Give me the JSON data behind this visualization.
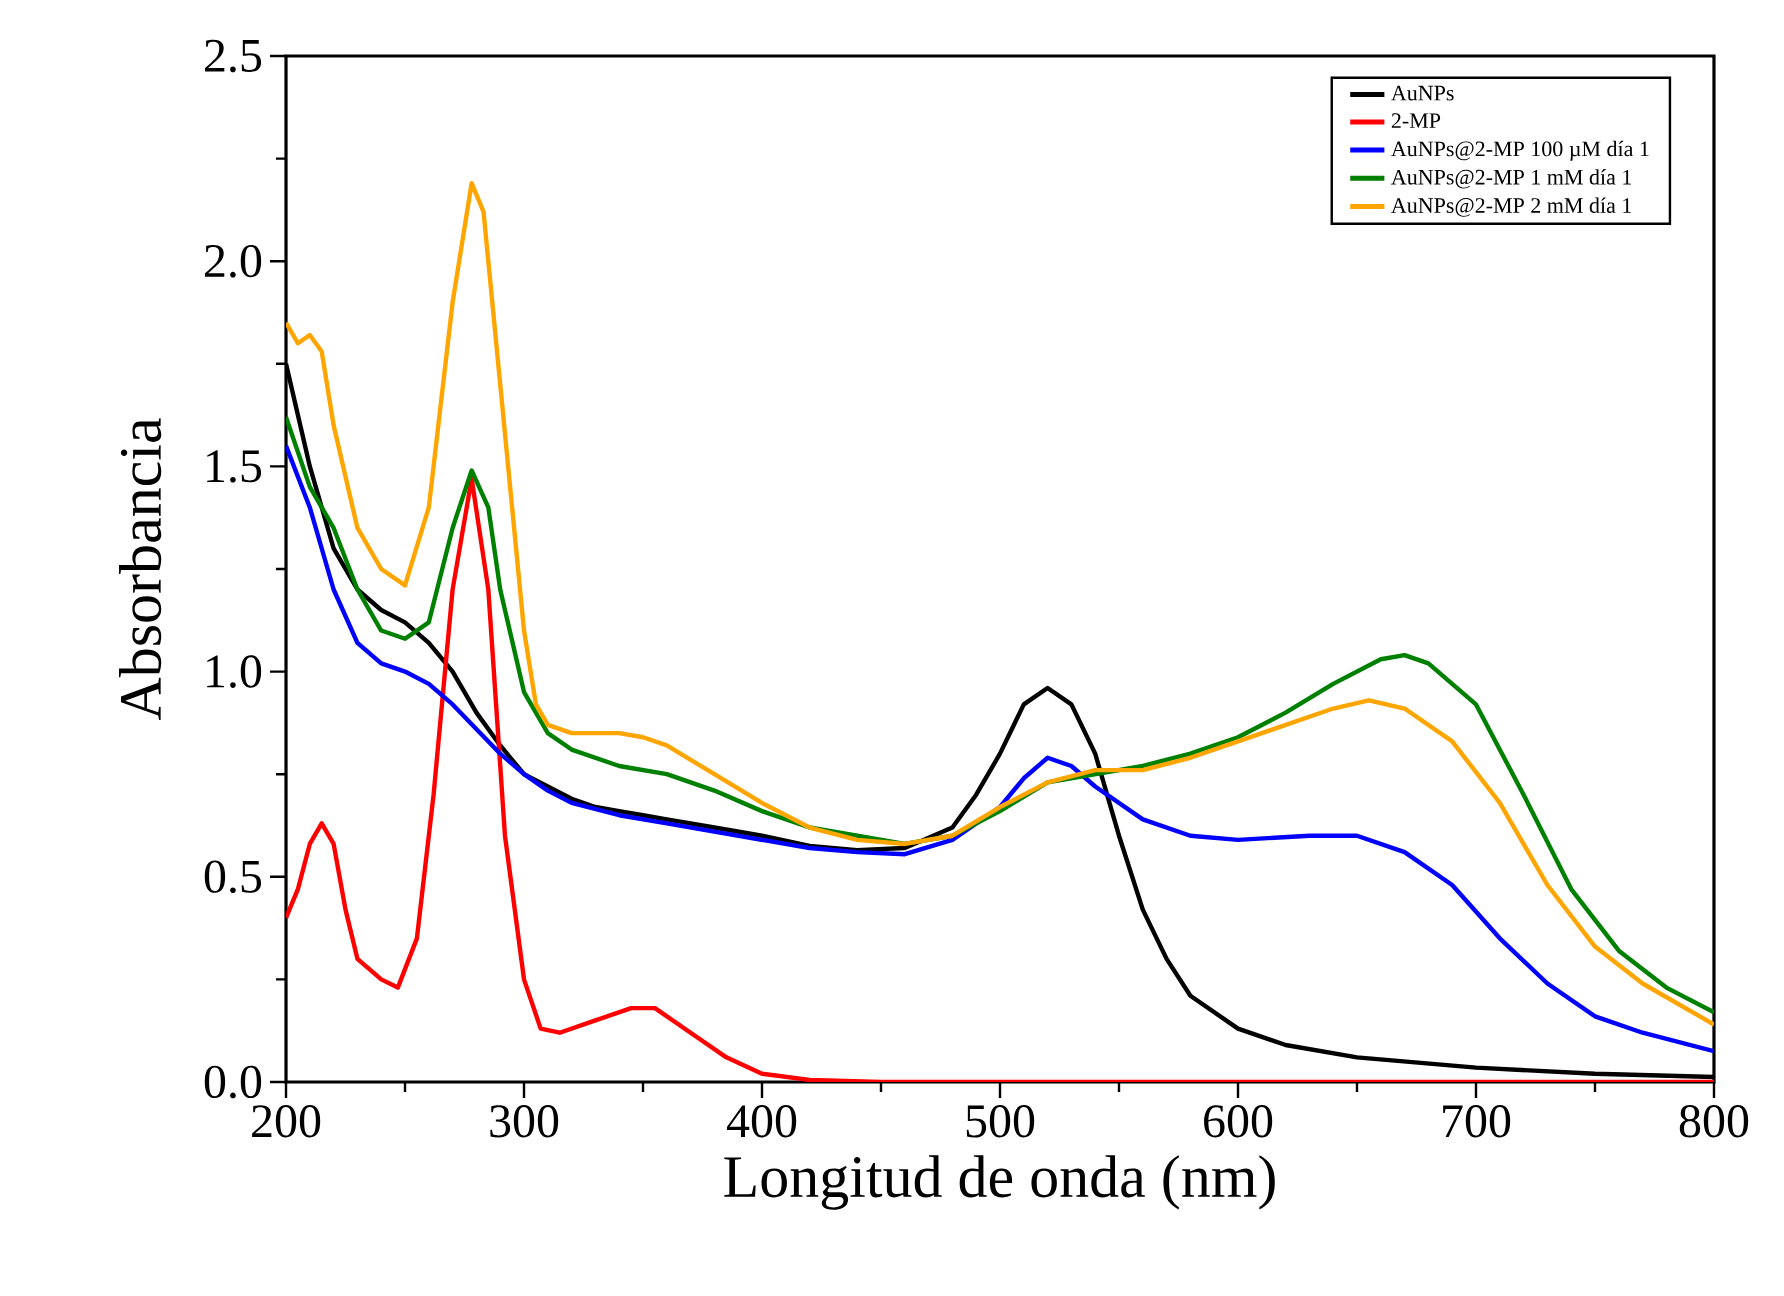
{
  "chart_data": {
    "type": "line",
    "xlabel": "Longitud de onda (nm)",
    "ylabel": "Absorbancia",
    "xlim": [
      200,
      800
    ],
    "ylim": [
      0,
      2.5
    ],
    "xticks": [
      200,
      300,
      400,
      500,
      600,
      700,
      800
    ],
    "yticks": [
      {
        "value": 0,
        "label": "0.0"
      },
      {
        "value": 0.5,
        "label": "0.5"
      },
      {
        "value": 1,
        "label": "1.0"
      },
      {
        "value": 1.5,
        "label": "1.5"
      },
      {
        "value": 2,
        "label": "2.0"
      },
      {
        "value": 2.5,
        "label": "2.5"
      }
    ],
    "legend": "top right",
    "grid": false,
    "marker": "none",
    "line_style": "solid",
    "series": [
      {
        "name": "AuNPs",
        "color": "#000000",
        "x": [
          200,
          210,
          220,
          230,
          240,
          250,
          260,
          270,
          280,
          290,
          300,
          310,
          320,
          330,
          340,
          350,
          360,
          380,
          400,
          420,
          440,
          460,
          480,
          490,
          500,
          510,
          520,
          530,
          540,
          550,
          560,
          570,
          580,
          600,
          620,
          650,
          700,
          750,
          800
        ],
        "values": [
          1.75,
          1.5,
          1.3,
          1.2,
          1.15,
          1.12,
          1.07,
          1.0,
          0.9,
          0.82,
          0.75,
          0.72,
          0.69,
          0.67,
          0.66,
          0.65,
          0.64,
          0.62,
          0.6,
          0.575,
          0.565,
          0.57,
          0.62,
          0.7,
          0.8,
          0.92,
          0.96,
          0.92,
          0.8,
          0.6,
          0.42,
          0.3,
          0.21,
          0.13,
          0.09,
          0.06,
          0.035,
          0.02,
          0.012
        ]
      },
      {
        "name": "2-MP",
        "color": "#ff0000",
        "x": [
          200,
          205,
          210,
          215,
          220,
          225,
          230,
          240,
          247,
          255,
          262,
          270,
          278,
          285,
          292,
          300,
          307,
          315,
          330,
          345,
          355,
          370,
          385,
          400,
          420,
          450,
          500,
          800
        ],
        "values": [
          0.4,
          0.47,
          0.58,
          0.63,
          0.58,
          0.42,
          0.3,
          0.25,
          0.23,
          0.35,
          0.7,
          1.2,
          1.47,
          1.2,
          0.6,
          0.25,
          0.13,
          0.12,
          0.15,
          0.18,
          0.18,
          0.12,
          0.06,
          0.02,
          0.005,
          0,
          0,
          0
        ]
      },
      {
        "name": "AuNPs@2-MP 100 µM día 1",
        "color": "#0000ff",
        "x": [
          200,
          210,
          220,
          230,
          240,
          250,
          260,
          270,
          280,
          290,
          300,
          310,
          320,
          340,
          360,
          380,
          400,
          420,
          440,
          460,
          480,
          500,
          510,
          520,
          530,
          540,
          560,
          580,
          600,
          630,
          650,
          670,
          690,
          710,
          730,
          750,
          770,
          800
        ],
        "values": [
          1.55,
          1.4,
          1.2,
          1.07,
          1.02,
          1.0,
          0.97,
          0.92,
          0.86,
          0.8,
          0.75,
          0.71,
          0.68,
          0.65,
          0.63,
          0.61,
          0.59,
          0.57,
          0.56,
          0.555,
          0.59,
          0.67,
          0.74,
          0.79,
          0.77,
          0.72,
          0.64,
          0.6,
          0.59,
          0.6,
          0.6,
          0.56,
          0.48,
          0.35,
          0.24,
          0.16,
          0.12,
          0.075
        ]
      },
      {
        "name": "AuNPs@2-MP 1 mM día 1",
        "color": "#008000",
        "x": [
          200,
          210,
          220,
          230,
          240,
          250,
          260,
          270,
          278,
          285,
          290,
          300,
          310,
          320,
          340,
          360,
          380,
          400,
          420,
          440,
          460,
          480,
          500,
          520,
          540,
          560,
          580,
          600,
          620,
          640,
          660,
          670,
          680,
          700,
          720,
          740,
          760,
          780,
          800
        ],
        "values": [
          1.62,
          1.45,
          1.35,
          1.2,
          1.1,
          1.08,
          1.12,
          1.35,
          1.49,
          1.4,
          1.2,
          0.95,
          0.85,
          0.81,
          0.77,
          0.75,
          0.71,
          0.66,
          0.62,
          0.6,
          0.58,
          0.6,
          0.66,
          0.73,
          0.75,
          0.77,
          0.8,
          0.84,
          0.9,
          0.97,
          1.03,
          1.04,
          1.02,
          0.92,
          0.7,
          0.47,
          0.32,
          0.23,
          0.17
        ]
      },
      {
        "name": "AuNPs@2-MP 2 mM día 1",
        "color": "#ffa500",
        "x": [
          200,
          205,
          210,
          215,
          220,
          230,
          240,
          250,
          260,
          270,
          278,
          283,
          290,
          300,
          305,
          310,
          320,
          340,
          350,
          360,
          380,
          400,
          420,
          440,
          460,
          480,
          500,
          520,
          540,
          560,
          580,
          600,
          620,
          640,
          655,
          670,
          690,
          710,
          730,
          750,
          770,
          800
        ],
        "values": [
          1.85,
          1.8,
          1.82,
          1.78,
          1.6,
          1.35,
          1.25,
          1.21,
          1.4,
          1.9,
          2.19,
          2.12,
          1.7,
          1.1,
          0.92,
          0.87,
          0.85,
          0.85,
          0.84,
          0.82,
          0.75,
          0.68,
          0.62,
          0.59,
          0.58,
          0.6,
          0.67,
          0.73,
          0.76,
          0.76,
          0.79,
          0.83,
          0.87,
          0.91,
          0.93,
          0.91,
          0.83,
          0.68,
          0.48,
          0.33,
          0.24,
          0.14
        ]
      }
    ]
  }
}
